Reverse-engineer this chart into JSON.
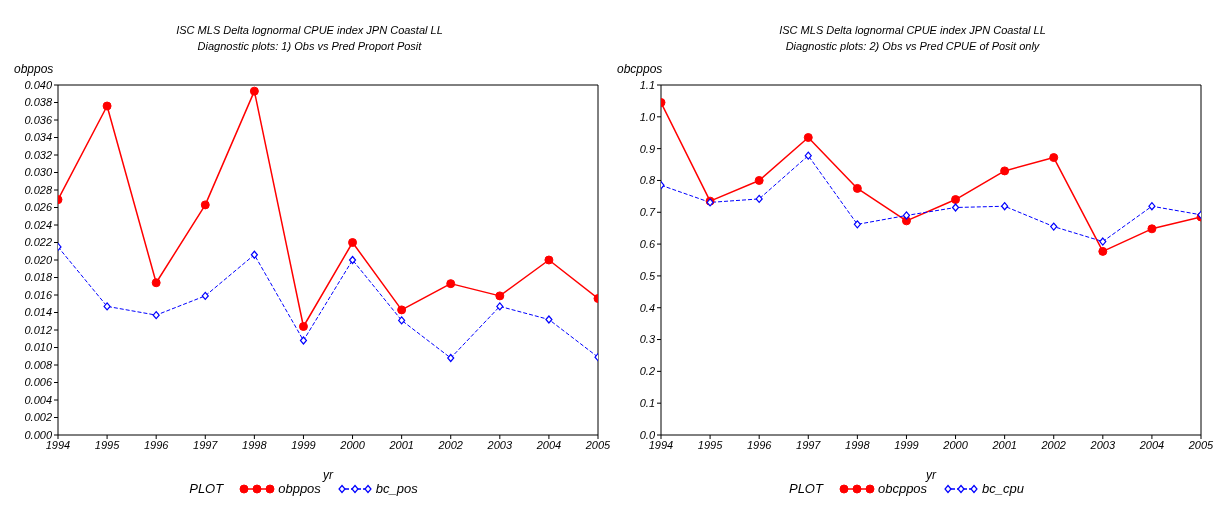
{
  "chart_data": [
    {
      "type": "line",
      "title": "ISC MLS Delta lognormal CPUE index JPN Coastal LL",
      "subtitle": "Diagnostic plots: 1) Obs vs Pred Proport Posit",
      "xlabel": "yr",
      "ylabel": "obppos",
      "legend_title": "PLOT",
      "legend": "bottom",
      "grid": false,
      "x": [
        1994,
        1995,
        1996,
        1997,
        1998,
        1999,
        2000,
        2001,
        2002,
        2003,
        2004,
        2005
      ],
      "xlim": [
        1994,
        2005
      ],
      "xticks": [
        1994,
        1995,
        1996,
        1997,
        1998,
        1999,
        2000,
        2001,
        2002,
        2003,
        2004,
        2005
      ],
      "ylim": [
        0,
        0.04
      ],
      "yticks": [
        {
          "value": 0,
          "label": "0.000"
        },
        {
          "value": 0.002,
          "label": "0.002"
        },
        {
          "value": 0.004,
          "label": "0.004"
        },
        {
          "value": 0.006,
          "label": "0.006"
        },
        {
          "value": 0.008,
          "label": "0.008"
        },
        {
          "value": 0.01,
          "label": "0.010"
        },
        {
          "value": 0.012,
          "label": "0.012"
        },
        {
          "value": 0.014,
          "label": "0.014"
        },
        {
          "value": 0.016,
          "label": "0.016"
        },
        {
          "value": 0.018,
          "label": "0.018"
        },
        {
          "value": 0.02,
          "label": "0.020"
        },
        {
          "value": 0.022,
          "label": "0.022"
        },
        {
          "value": 0.024,
          "label": "0.024"
        },
        {
          "value": 0.026,
          "label": "0.026"
        },
        {
          "value": 0.028,
          "label": "0.028"
        },
        {
          "value": 0.03,
          "label": "0.030"
        },
        {
          "value": 0.032,
          "label": "0.032"
        },
        {
          "value": 0.034,
          "label": "0.034"
        },
        {
          "value": 0.036,
          "label": "0.036"
        },
        {
          "value": 0.038,
          "label": "0.038"
        },
        {
          "value": 0.04,
          "label": "0.040"
        }
      ],
      "series": [
        {
          "name": "obppos",
          "color": "#ff0000",
          "marker": "circle",
          "line_style": "solid",
          "values": [
            0.0269,
            0.0376,
            0.0174,
            0.0263,
            0.0393,
            0.0124,
            0.022,
            0.0143,
            0.0173,
            0.0159,
            0.02,
            0.0156
          ]
        },
        {
          "name": "bc_pos",
          "color": "#0000ff",
          "marker": "diamond",
          "line_style": "dashed",
          "values": [
            0.0215,
            0.0147,
            0.0137,
            0.0159,
            0.0206,
            0.0108,
            0.02,
            0.0131,
            0.0088,
            0.0147,
            0.0132,
            0.0089
          ]
        }
      ]
    },
    {
      "type": "line",
      "title": "ISC MLS Delta lognormal CPUE index JPN Coastal LL",
      "subtitle": "Diagnostic plots: 2) Obs vs Pred CPUE of Posit only",
      "xlabel": "yr",
      "ylabel": "obcppos",
      "legend_title": "PLOT",
      "legend": "bottom",
      "grid": false,
      "x": [
        1994,
        1995,
        1996,
        1997,
        1998,
        1999,
        2000,
        2001,
        2002,
        2003,
        2004,
        2005
      ],
      "xlim": [
        1994,
        2005
      ],
      "xticks": [
        1994,
        1995,
        1996,
        1997,
        1998,
        1999,
        2000,
        2001,
        2002,
        2003,
        2004,
        2005
      ],
      "ylim": [
        0,
        1.1
      ],
      "yticks": [
        {
          "value": 0,
          "label": "0.0"
        },
        0.1,
        0.2,
        0.3,
        0.4,
        0.5,
        0.6,
        0.7,
        0.8,
        0.9,
        {
          "value": 1,
          "label": "1.0"
        },
        1.1
      ],
      "series": [
        {
          "name": "obcppos",
          "color": "#ff0000",
          "marker": "circle",
          "line_style": "solid",
          "values": [
            1.045,
            0.735,
            0.8,
            0.935,
            0.775,
            0.673,
            0.74,
            0.83,
            0.872,
            0.577,
            0.648,
            0.685
          ]
        },
        {
          "name": "bc_cpu",
          "color": "#0000ff",
          "marker": "diamond",
          "line_style": "dashed",
          "values": [
            0.785,
            0.731,
            0.742,
            0.878,
            0.662,
            0.69,
            0.715,
            0.719,
            0.655,
            0.608,
            0.719,
            0.692
          ]
        }
      ]
    }
  ]
}
